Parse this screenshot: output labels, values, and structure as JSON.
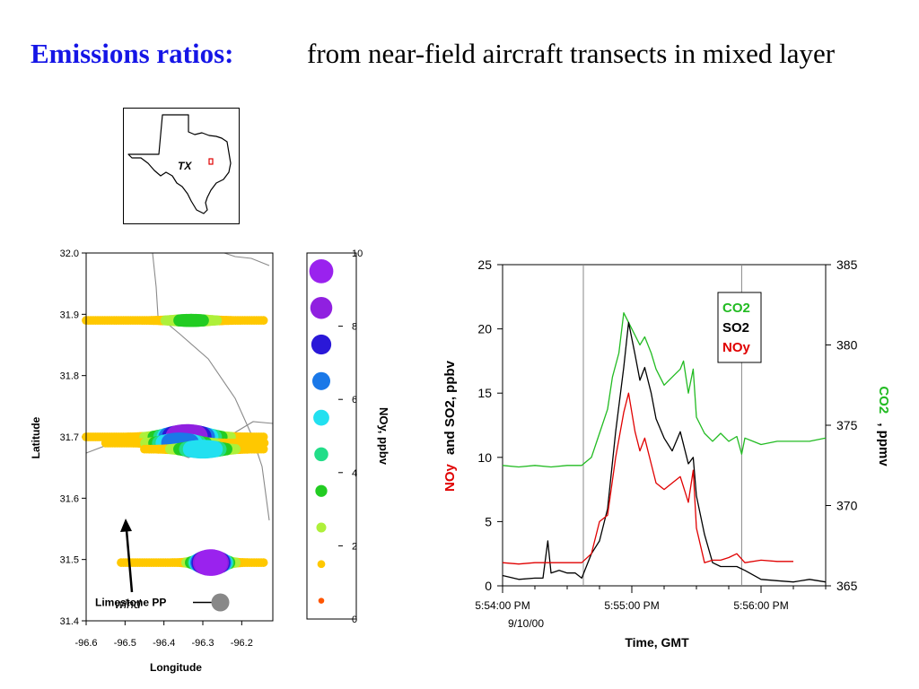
{
  "slide": {
    "title": "Emissions ratios:",
    "subtitle": "from near-field aircraft transects in mixed layer"
  },
  "inset_map": {
    "state_label": "TX"
  },
  "chart_data": [
    {
      "type": "scatter",
      "xlabel": "Longitude",
      "ylabel": "Latitude",
      "xlim": [
        -96.6,
        -96.12
      ],
      "ylim": [
        31.4,
        32.0
      ],
      "xticks": [
        "-96.6",
        "-96.5",
        "-96.4",
        "-96.3",
        "-96.2"
      ],
      "yticks": [
        "31.4",
        "31.5",
        "31.6",
        "31.7",
        "31.8",
        "31.9",
        "32.0"
      ],
      "annotations": {
        "wind": "wind",
        "source": "Limestone PP"
      },
      "source_point": {
        "x": -96.255,
        "y": 31.43
      },
      "colorbar": {
        "label": "NOy, ppbv",
        "range": [
          0,
          10
        ],
        "ticks": [
          "0",
          "2",
          "4",
          "6",
          "8",
          "10"
        ],
        "levels": [
          {
            "value": 0.5,
            "color": "#ff5500"
          },
          {
            "value": 1.5,
            "color": "#ffc800"
          },
          {
            "value": 2.5,
            "color": "#aef03a"
          },
          {
            "value": 3.5,
            "color": "#22cc22"
          },
          {
            "value": 4.5,
            "color": "#22dd88"
          },
          {
            "value": 5.5,
            "color": "#22e0f0"
          },
          {
            "value": 6.5,
            "color": "#1a78e8"
          },
          {
            "value": 7.5,
            "color": "#2a18d8"
          },
          {
            "value": 8.5,
            "color": "#9020e0"
          },
          {
            "value": 9.5,
            "color": "#9a22ee"
          }
        ]
      },
      "transects": [
        {
          "y": 31.89,
          "x_from": -96.6,
          "x_to": -96.14,
          "peak_x": -96.33,
          "peak_value": 3.5,
          "width": 0.06
        },
        {
          "y": 31.7,
          "x_from": -96.6,
          "x_to": -96.14,
          "peak_x": -96.34,
          "peak_value": 9.0,
          "width": 0.07
        },
        {
          "y": 31.69,
          "x_from": -96.55,
          "x_to": -96.14,
          "peak_x": -96.36,
          "peak_value": 7.0,
          "width": 0.06
        },
        {
          "y": 31.68,
          "x_from": -96.45,
          "x_to": -96.14,
          "peak_x": -96.3,
          "peak_value": 6.0,
          "width": 0.06
        },
        {
          "y": 31.495,
          "x_from": -96.51,
          "x_to": -96.14,
          "peak_x": -96.28,
          "peak_value": 9.5,
          "width": 0.04
        }
      ]
    },
    {
      "type": "line",
      "xlabel": "Time, GMT",
      "ylabel_left_parts": [
        "NOy",
        "and SO2, ppbv"
      ],
      "ylabel_right": "CO2, ppmv",
      "xlim": [
        0,
        200
      ],
      "ylim_left": [
        0,
        25
      ],
      "ylim_right": [
        365,
        385
      ],
      "xticks": [
        {
          "x": 0,
          "label": "5:54:00 PM"
        },
        {
          "x": 80,
          "label": "5:55:00 PM"
        },
        {
          "x": 160,
          "label": "5:56:00 PM"
        }
      ],
      "date_label": "9/10/00",
      "yticks_left": [
        "0",
        "5",
        "10",
        "15",
        "20",
        "25"
      ],
      "yticks_right": [
        "365",
        "370",
        "375",
        "380",
        "385"
      ],
      "vlines": [
        50,
        148
      ],
      "legend": [
        "CO2",
        "SO2",
        "NOy"
      ],
      "series": [
        {
          "name": "CO2",
          "axis": "right",
          "color": "#22bb22",
          "x": [
            0,
            10,
            20,
            30,
            40,
            49,
            55,
            60,
            65,
            68,
            72,
            75,
            80,
            85,
            88,
            92,
            95,
            100,
            105,
            110,
            112,
            115,
            118,
            120,
            125,
            130,
            135,
            140,
            145,
            148,
            150,
            155,
            160,
            170,
            180,
            190,
            200
          ],
          "y": [
            372.5,
            372.4,
            372.5,
            372.4,
            372.5,
            372.5,
            373.0,
            374.5,
            376.0,
            378.0,
            379.5,
            382.0,
            381.0,
            380.0,
            380.5,
            379.5,
            378.5,
            377.5,
            378.0,
            378.5,
            379.0,
            377.0,
            378.5,
            375.5,
            374.5,
            374.0,
            374.5,
            374.0,
            374.3,
            373.2,
            374.2,
            374.0,
            373.8,
            374.0,
            374.0,
            374.0,
            374.2
          ]
        },
        {
          "name": "SO2",
          "axis": "left",
          "color": "#000000",
          "x": [
            0,
            10,
            20,
            25,
            28,
            30,
            35,
            40,
            45,
            49,
            55,
            60,
            65,
            70,
            75,
            78,
            82,
            85,
            88,
            92,
            95,
            100,
            105,
            110,
            115,
            118,
            120,
            125,
            130,
            135,
            140,
            145,
            150,
            160,
            170,
            180,
            190,
            200
          ],
          "y": [
            0.8,
            0.5,
            0.6,
            0.6,
            3.5,
            1.0,
            1.2,
            1.0,
            1.0,
            0.6,
            2.5,
            3.5,
            6.0,
            12.0,
            17.0,
            20.5,
            18.0,
            16.0,
            17.0,
            15.0,
            13.0,
            11.5,
            10.5,
            12.0,
            9.5,
            10.0,
            7.0,
            4.0,
            1.8,
            1.5,
            1.5,
            1.5,
            1.2,
            0.5,
            0.4,
            0.3,
            0.5,
            0.3
          ]
        },
        {
          "name": "NOy",
          "axis": "left",
          "color": "#e00000",
          "x": [
            0,
            10,
            20,
            30,
            40,
            49,
            55,
            60,
            65,
            70,
            75,
            78,
            82,
            85,
            88,
            92,
            95,
            100,
            105,
            110,
            115,
            118,
            120,
            125,
            130,
            135,
            140,
            145,
            150,
            160,
            170,
            180
          ],
          "y": [
            1.8,
            1.7,
            1.8,
            1.8,
            1.8,
            1.8,
            2.5,
            5.0,
            5.5,
            10.0,
            13.5,
            15.0,
            12.0,
            10.5,
            11.5,
            9.5,
            8.0,
            7.5,
            8.0,
            8.5,
            6.5,
            9.0,
            4.5,
            1.8,
            2.0,
            2.0,
            2.2,
            2.5,
            1.8,
            2.0,
            1.9,
            1.9
          ]
        }
      ]
    }
  ]
}
